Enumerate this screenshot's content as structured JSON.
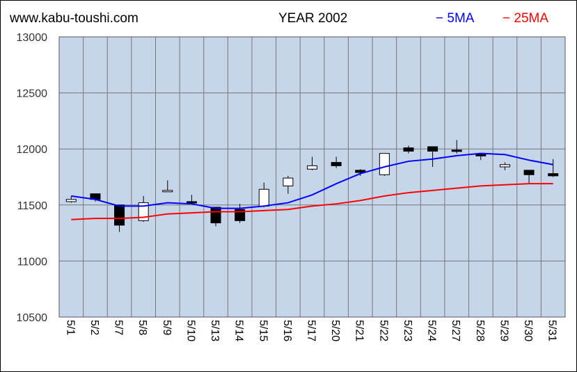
{
  "header": {
    "site": "www.kabu-toushi.com",
    "legend_5ma": "− 5MA",
    "legend_25ma": "− 25MA"
  },
  "chart_data": {
    "type": "candlestick",
    "title": "YEAR 2002",
    "xlabel": "",
    "ylabel": "",
    "ylim": [
      10500,
      13000
    ],
    "yticks": [
      10500,
      11000,
      11500,
      12000,
      12500,
      13000
    ],
    "grid": true,
    "legend_position": "top-right",
    "categories": [
      "5/1",
      "5/2",
      "5/7",
      "5/8",
      "5/9",
      "5/10",
      "5/13",
      "5/14",
      "5/15",
      "5/16",
      "5/17",
      "5/20",
      "5/21",
      "5/22",
      "5/23",
      "5/24",
      "5/27",
      "5/28",
      "5/29",
      "5/30",
      "5/31"
    ],
    "candles": [
      {
        "open": 11530,
        "close": 11550,
        "high": 11580,
        "low": 11520
      },
      {
        "open": 11600,
        "close": 11550,
        "high": 11600,
        "low": 11530
      },
      {
        "open": 11500,
        "close": 11320,
        "high": 11500,
        "low": 11260
      },
      {
        "open": 11360,
        "close": 11520,
        "high": 11580,
        "low": 11350
      },
      {
        "open": 11620,
        "close": 11630,
        "high": 11720,
        "low": 11620
      },
      {
        "open": 11530,
        "close": 11520,
        "high": 11590,
        "low": 11510
      },
      {
        "open": 11480,
        "close": 11340,
        "high": 11480,
        "low": 11310
      },
      {
        "open": 11460,
        "close": 11360,
        "high": 11510,
        "low": 11340
      },
      {
        "open": 11490,
        "close": 11640,
        "high": 11700,
        "low": 11480
      },
      {
        "open": 11670,
        "close": 11740,
        "high": 11760,
        "low": 11600
      },
      {
        "open": 11820,
        "close": 11850,
        "high": 11930,
        "low": 11810
      },
      {
        "open": 11880,
        "close": 11850,
        "high": 11930,
        "low": 11830
      },
      {
        "open": 11810,
        "close": 11790,
        "high": 11820,
        "low": 11760
      },
      {
        "open": 11770,
        "close": 11960,
        "high": 11960,
        "low": 11760
      },
      {
        "open": 12010,
        "close": 11980,
        "high": 12030,
        "low": 11960
      },
      {
        "open": 12020,
        "close": 11980,
        "high": 12020,
        "low": 11840
      },
      {
        "open": 11990,
        "close": 11980,
        "high": 12080,
        "low": 11960
      },
      {
        "open": 11950,
        "close": 11940,
        "high": 11960,
        "low": 11900
      },
      {
        "open": 11840,
        "close": 11860,
        "high": 11880,
        "low": 11810
      },
      {
        "open": 11810,
        "close": 11770,
        "high": 11810,
        "low": 11690
      },
      {
        "open": 11780,
        "close": 11760,
        "high": 11910,
        "low": 11750
      }
    ],
    "series": [
      {
        "name": "5MA",
        "color": "#0000ff",
        "values": [
          11580,
          11550,
          11490,
          11490,
          11520,
          11510,
          11470,
          11470,
          11490,
          11520,
          11590,
          11690,
          11780,
          11840,
          11890,
          11910,
          11940,
          11960,
          11950,
          11900,
          11860
        ]
      },
      {
        "name": "25MA",
        "color": "#ff0000",
        "values": [
          11370,
          11380,
          11380,
          11390,
          11420,
          11430,
          11440,
          11440,
          11450,
          11460,
          11490,
          11510,
          11540,
          11580,
          11610,
          11630,
          11650,
          11670,
          11680,
          11690,
          11690
        ]
      }
    ],
    "colors": {
      "plot_background": "#c5d5ea",
      "grid": "#777777",
      "up_candle": "#ffffff",
      "down_candle": "#000000"
    }
  }
}
